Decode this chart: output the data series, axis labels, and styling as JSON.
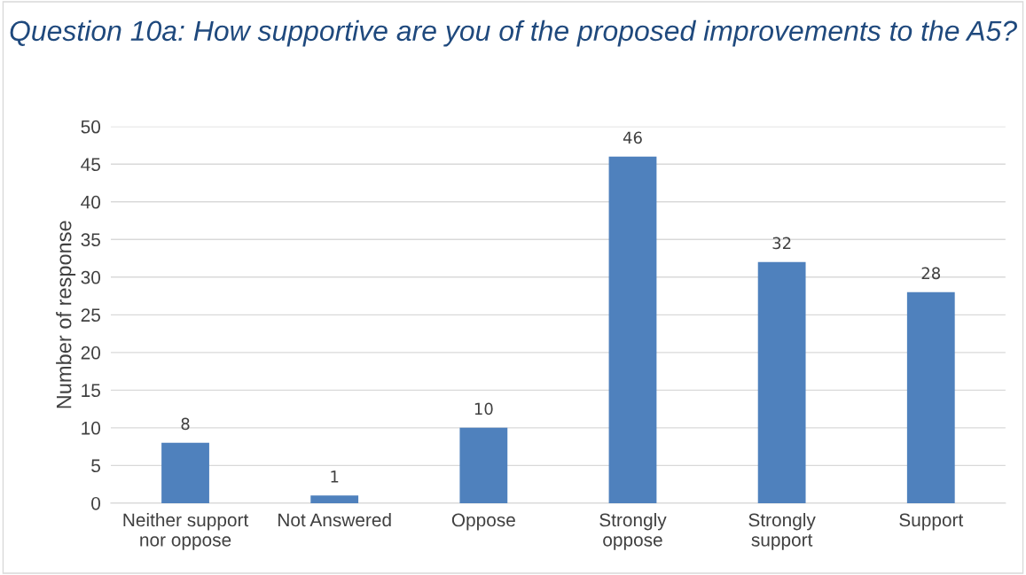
{
  "chart_data": {
    "type": "bar",
    "title": "Question 10a: How supportive are you of the proposed improvements to the A5?",
    "ylabel": "Number of response",
    "categories": [
      "Neither support\nnor oppose",
      "Not Answered",
      "Oppose",
      "Strongly\noppose",
      "Strongly\nsupport",
      "Support"
    ],
    "values": [
      8,
      1,
      10,
      46,
      32,
      28
    ],
    "color": "#4f81bd",
    "ylim": [
      0,
      50
    ],
    "yticks": [
      0,
      5,
      10,
      15,
      20,
      25,
      30,
      35,
      40,
      45,
      50
    ],
    "grid": "y",
    "data_labels": true
  }
}
